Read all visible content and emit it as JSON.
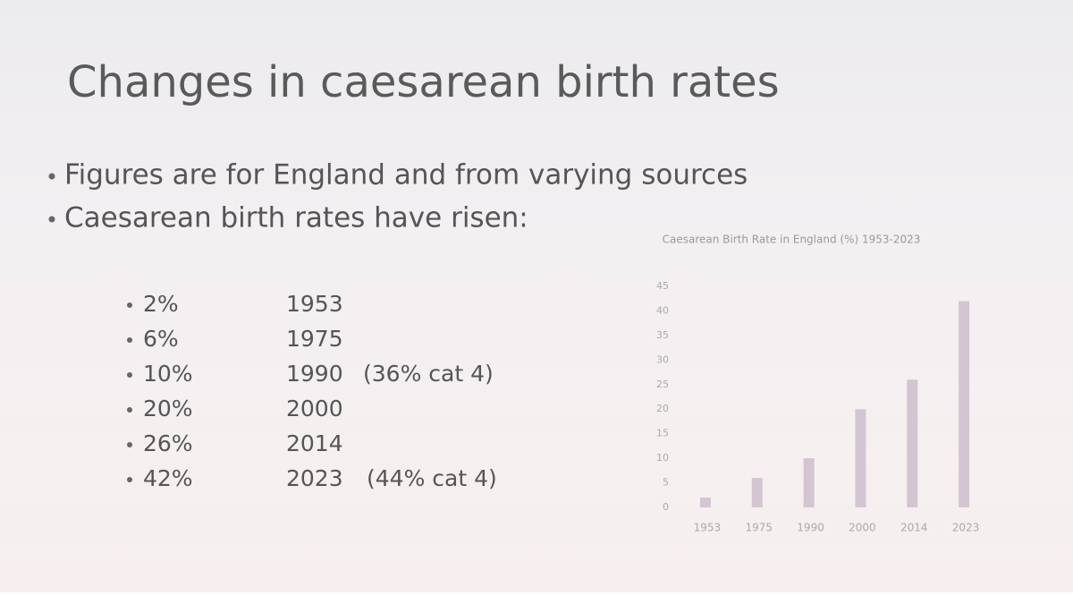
{
  "slide": {
    "title": "Changes in caesarean birth rates",
    "bullets": [
      "Figures are for England and from varying sources",
      "Caesarean birth rates have risen:"
    ],
    "rows": [
      {
        "rate": "2%",
        "year": "1953"
      },
      {
        "rate": "6%",
        "year": "1975"
      },
      {
        "rate": "10%",
        "year": "1990",
        "note": "(36% cat 4)"
      },
      {
        "rate": "20%",
        "year": "2000"
      },
      {
        "rate": "26%",
        "year": "2014"
      },
      {
        "rate": "42%",
        "year": "2023",
        "note": "(44% cat 4)"
      }
    ]
  },
  "chart_data": {
    "type": "bar",
    "title": "Caesarean Birth Rate in England (%) 1953-2023",
    "categories": [
      "1953",
      "1975",
      "1990",
      "2000",
      "2014",
      "2023"
    ],
    "values": [
      2,
      6,
      10,
      20,
      26,
      42
    ],
    "color": "#d3c6d2",
    "ylim": [
      0,
      45
    ],
    "yticks": [
      0,
      5,
      10,
      15,
      20,
      25,
      30,
      35,
      40,
      45
    ],
    "grid": false
  }
}
